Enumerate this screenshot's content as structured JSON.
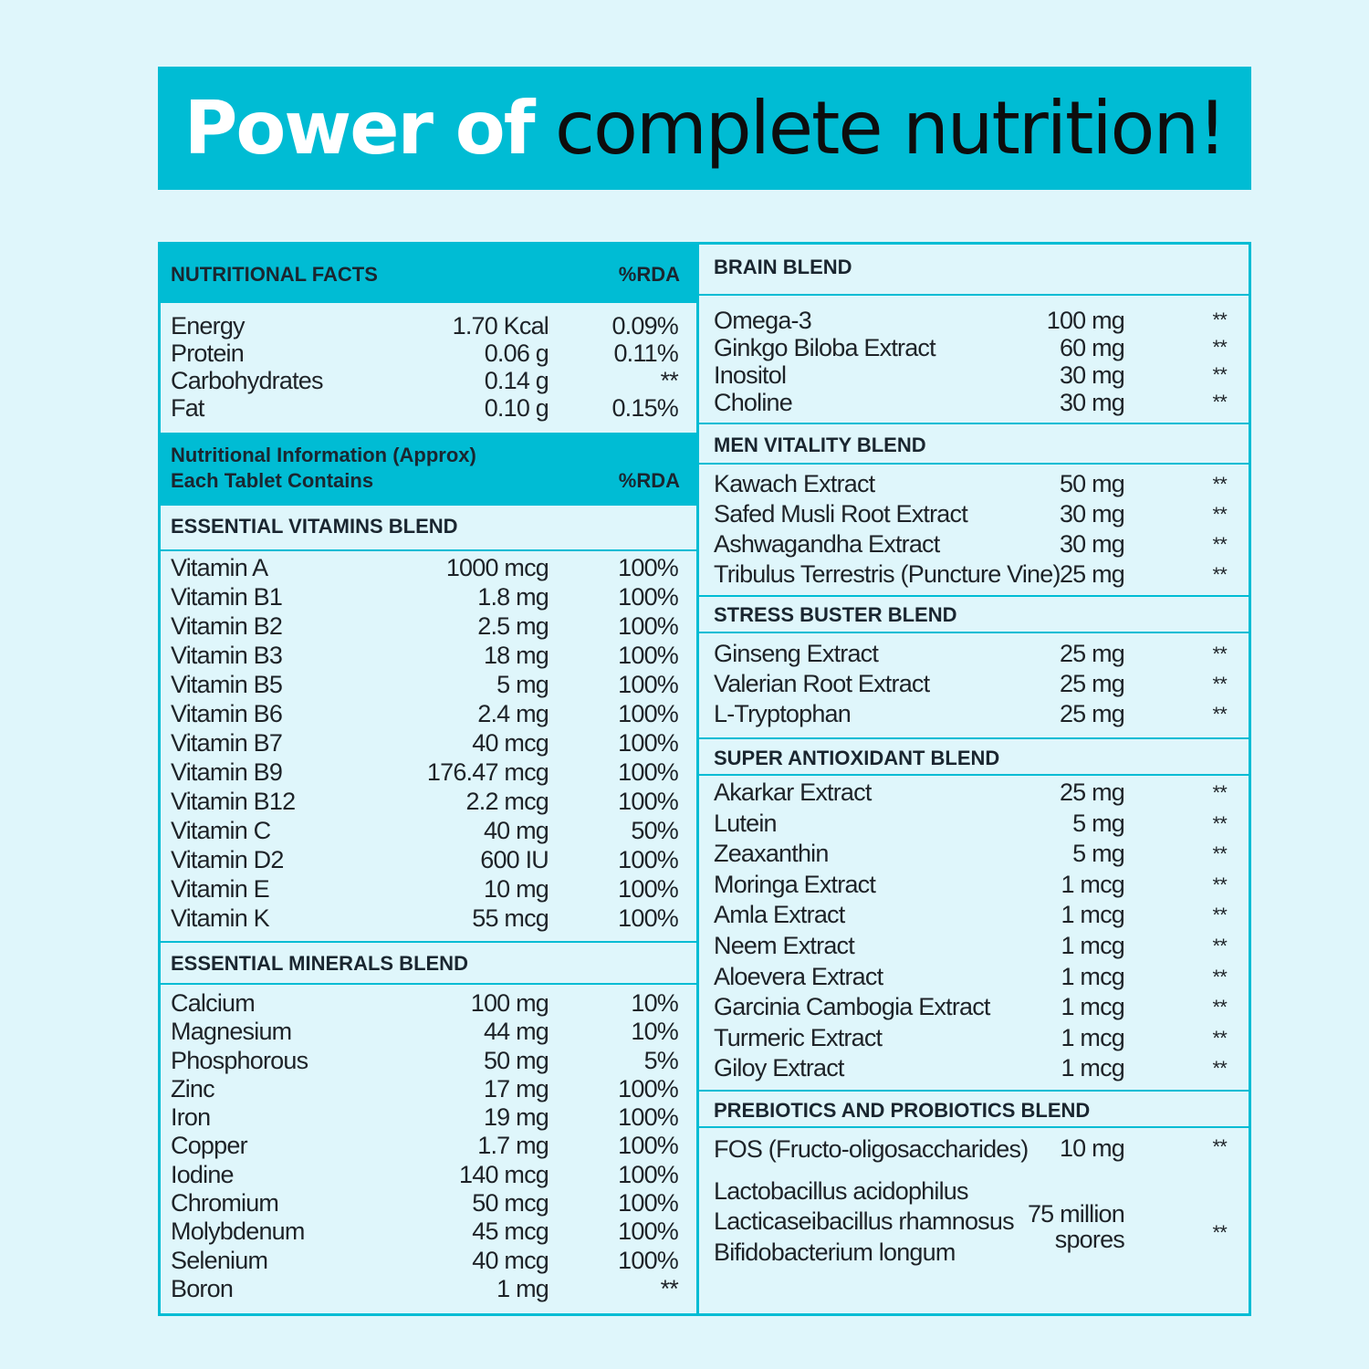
{
  "banner": {
    "title_bold": "Power of",
    "title_rest": "complete nutrition!"
  },
  "nutritional_facts": {
    "title": "NUTRITIONAL FACTS",
    "rda_label": "%RDA",
    "rows": [
      {
        "name": "Energy",
        "amount": "1.70 Kcal",
        "rda": "0.09%"
      },
      {
        "name": "Protein",
        "amount": "0.06 g",
        "rda": "0.11%"
      },
      {
        "name": "Carbohydrates",
        "amount": "0.14 g",
        "rda": "**"
      },
      {
        "name": "Fat",
        "amount": "0.10 g",
        "rda": "0.15%"
      }
    ]
  },
  "nutritional_info": {
    "line1": "Nutritional Information (Approx)",
    "line2": "Each Tablet Contains",
    "rda_label": "%RDA"
  },
  "vitamins": {
    "title": "ESSENTIAL VITAMINS BLEND",
    "rows": [
      {
        "name": "Vitamin A",
        "amount": "1000 mcg",
        "rda": "100%"
      },
      {
        "name": "Vitamin B1",
        "amount": "1.8 mg",
        "rda": "100%"
      },
      {
        "name": "Vitamin B2",
        "amount": "2.5 mg",
        "rda": "100%"
      },
      {
        "name": "Vitamin B3",
        "amount": "18 mg",
        "rda": "100%"
      },
      {
        "name": "Vitamin B5",
        "amount": "5 mg",
        "rda": "100%"
      },
      {
        "name": "Vitamin B6",
        "amount": "2.4 mg",
        "rda": "100%"
      },
      {
        "name": "Vitamin B7",
        "amount": "40 mcg",
        "rda": "100%"
      },
      {
        "name": "Vitamin B9",
        "amount": "176.47 mcg",
        "rda": "100%"
      },
      {
        "name": "Vitamin B12",
        "amount": "2.2 mcg",
        "rda": "100%"
      },
      {
        "name": "Vitamin C",
        "amount": "40 mg",
        "rda": "50%"
      },
      {
        "name": "Vitamin D2",
        "amount": "600 IU",
        "rda": "100%"
      },
      {
        "name": "Vitamin E",
        "amount": "10 mg",
        "rda": "100%"
      },
      {
        "name": "Vitamin K",
        "amount": "55 mcg",
        "rda": "100%"
      }
    ]
  },
  "minerals": {
    "title": "ESSENTIAL MINERALS BLEND",
    "rows": [
      {
        "name": "Calcium",
        "amount": "100 mg",
        "rda": "10%"
      },
      {
        "name": "Magnesium",
        "amount": "44 mg",
        "rda": "10%"
      },
      {
        "name": "Phosphorous",
        "amount": "50 mg",
        "rda": "5%"
      },
      {
        "name": "Zinc",
        "amount": "17 mg",
        "rda": "100%"
      },
      {
        "name": "Iron",
        "amount": "19 mg",
        "rda": "100%"
      },
      {
        "name": "Copper",
        "amount": "1.7 mg",
        "rda": "100%"
      },
      {
        "name": "Iodine",
        "amount": "140 mcg",
        "rda": "100%"
      },
      {
        "name": "Chromium",
        "amount": "50 mcg",
        "rda": "100%"
      },
      {
        "name": "Molybdenum",
        "amount": "45 mcg",
        "rda": "100%"
      },
      {
        "name": "Selenium",
        "amount": "40 mcg",
        "rda": "100%"
      },
      {
        "name": "Boron",
        "amount": "1 mg",
        "rda": "**"
      }
    ]
  },
  "brain": {
    "title": "BRAIN BLEND",
    "rows": [
      {
        "name": "Omega-3",
        "amount": "100 mg",
        "rda": "**"
      },
      {
        "name": "Ginkgo Biloba Extract",
        "amount": "60 mg",
        "rda": "**"
      },
      {
        "name": "Inositol",
        "amount": "30 mg",
        "rda": "**"
      },
      {
        "name": "Choline",
        "amount": "30 mg",
        "rda": "**"
      }
    ]
  },
  "men_vitality": {
    "title": "MEN VITALITY BLEND",
    "rows": [
      {
        "name": "Kawach Extract",
        "amount": "50 mg",
        "rda": "**"
      },
      {
        "name": "Safed Musli Root Extract",
        "amount": "30 mg",
        "rda": "**"
      },
      {
        "name": "Ashwagandha Extract",
        "amount": "30 mg",
        "rda": "**"
      },
      {
        "name": "Tribulus Terrestris (Puncture Vine)",
        "amount": "25 mg",
        "rda": "**"
      }
    ]
  },
  "stress": {
    "title": "STRESS BUSTER BLEND",
    "rows": [
      {
        "name": "Ginseng Extract",
        "amount": "25 mg",
        "rda": "**"
      },
      {
        "name": "Valerian Root Extract",
        "amount": "25 mg",
        "rda": "**"
      },
      {
        "name": "L-Tryptophan",
        "amount": "25 mg",
        "rda": "**"
      }
    ]
  },
  "antioxidant": {
    "title": "SUPER ANTIOXIDANT BLEND",
    "rows": [
      {
        "name": "Akarkar Extract",
        "amount": "25 mg",
        "rda": "**"
      },
      {
        "name": "Lutein",
        "amount": "5 mg",
        "rda": "**"
      },
      {
        "name": "Zeaxanthin",
        "amount": "5 mg",
        "rda": "**"
      },
      {
        "name": "Moringa Extract",
        "amount": "1 mcg",
        "rda": "**"
      },
      {
        "name": "Amla Extract",
        "amount": "1 mcg",
        "rda": "**"
      },
      {
        "name": "Neem Extract",
        "amount": "1 mcg",
        "rda": "**"
      },
      {
        "name": "Aloevera Extract",
        "amount": "1 mcg",
        "rda": "**"
      },
      {
        "name": "Garcinia Cambogia Extract",
        "amount": "1 mcg",
        "rda": "**"
      },
      {
        "name": "Turmeric Extract",
        "amount": "1 mcg",
        "rda": "**"
      },
      {
        "name": "Giloy Extract",
        "amount": "1 mcg",
        "rda": "**"
      }
    ]
  },
  "prebiotics": {
    "title": "PREBIOTICS AND PROBIOTICS BLEND",
    "fos": {
      "name": "FOS (Fructo-oligosaccharides)",
      "amount": "10 mg",
      "rda": "**"
    },
    "probiotic_names": [
      "Lactobacillus acidophilus",
      "Lacticaseibacillus rhamnosus",
      "Bifidobacterium longum"
    ],
    "probiotic_amount_line1": "75 million",
    "probiotic_amount_line2": "spores",
    "probiotic_rda": "**"
  }
}
